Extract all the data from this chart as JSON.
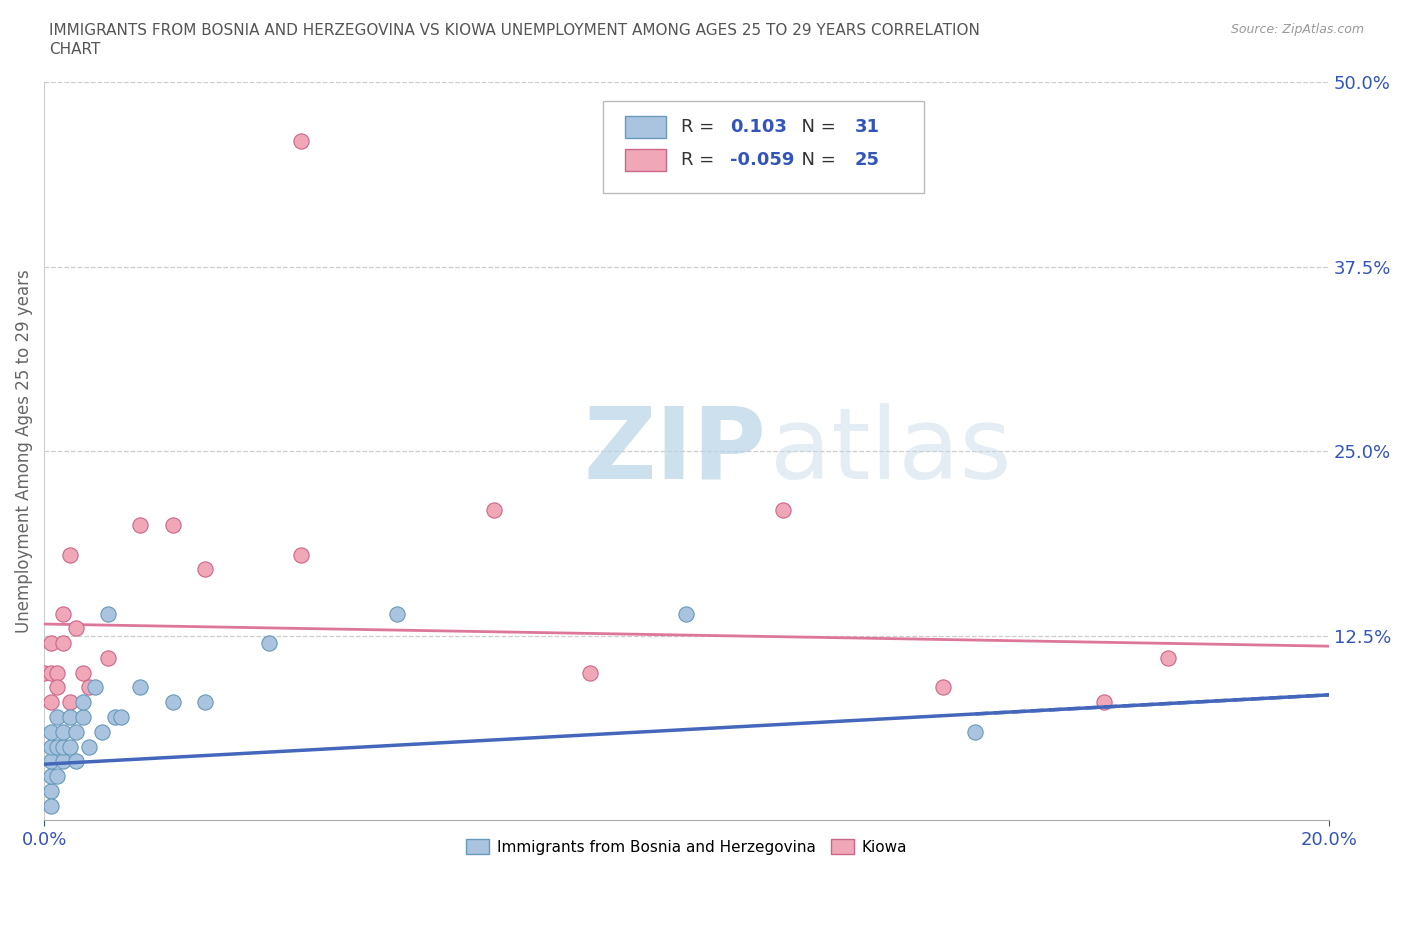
{
  "title_line1": "IMMIGRANTS FROM BOSNIA AND HERZEGOVINA VS KIOWA UNEMPLOYMENT AMONG AGES 25 TO 29 YEARS CORRELATION",
  "title_line2": "CHART",
  "source": "Source: ZipAtlas.com",
  "ylabel": "Unemployment Among Ages 25 to 29 years",
  "xlim": [
    0.0,
    0.2
  ],
  "ylim": [
    0.0,
    0.5
  ],
  "yticks_right": [
    0.125,
    0.25,
    0.375,
    0.5
  ],
  "ytick_right_labels": [
    "12.5%",
    "25.0%",
    "37.5%",
    "50.0%"
  ],
  "watermark_zip": "ZIP",
  "watermark_atlas": "atlas",
  "background_color": "#ffffff",
  "grid_color": "#cccccc",
  "series1_color": "#aac4e0",
  "series1_edge": "#6699bb",
  "series2_color": "#f0a8b8",
  "series2_edge": "#cc6688",
  "series1_label": "Immigrants from Bosnia and Herzegovina",
  "series2_label": "Kiowa",
  "series1_R": "0.103",
  "series1_N": "31",
  "series2_R": "-0.059",
  "series2_N": "25",
  "legend_color": "#3355bb",
  "trendline1_color": "#4466bb",
  "trendline2_color": "#dd7799",
  "series1_x": [
    0.001,
    0.001,
    0.001,
    0.001,
    0.001,
    0.001,
    0.002,
    0.002,
    0.002,
    0.003,
    0.003,
    0.003,
    0.004,
    0.004,
    0.005,
    0.005,
    0.006,
    0.006,
    0.007,
    0.008,
    0.009,
    0.01,
    0.011,
    0.012,
    0.015,
    0.02,
    0.025,
    0.035,
    0.055,
    0.1,
    0.145
  ],
  "series1_y": [
    0.02,
    0.03,
    0.04,
    0.05,
    0.01,
    0.06,
    0.03,
    0.05,
    0.07,
    0.04,
    0.05,
    0.06,
    0.05,
    0.07,
    0.06,
    0.04,
    0.07,
    0.08,
    0.05,
    0.09,
    0.06,
    0.14,
    0.07,
    0.07,
    0.09,
    0.08,
    0.08,
    0.12,
    0.14,
    0.14,
    0.06
  ],
  "series2_x": [
    0.0,
    0.001,
    0.001,
    0.001,
    0.002,
    0.002,
    0.003,
    0.003,
    0.004,
    0.004,
    0.005,
    0.006,
    0.007,
    0.01,
    0.015,
    0.02,
    0.025,
    0.04,
    0.04,
    0.07,
    0.085,
    0.115,
    0.14,
    0.165,
    0.175
  ],
  "series2_y": [
    0.1,
    0.08,
    0.1,
    0.12,
    0.1,
    0.09,
    0.12,
    0.14,
    0.08,
    0.18,
    0.13,
    0.1,
    0.09,
    0.11,
    0.2,
    0.2,
    0.17,
    0.46,
    0.18,
    0.21,
    0.1,
    0.21,
    0.09,
    0.08,
    0.11
  ],
  "trendline1_start_y": 0.038,
  "trendline1_end_y": 0.085,
  "trendline2_start_y": 0.133,
  "trendline2_end_y": 0.118
}
